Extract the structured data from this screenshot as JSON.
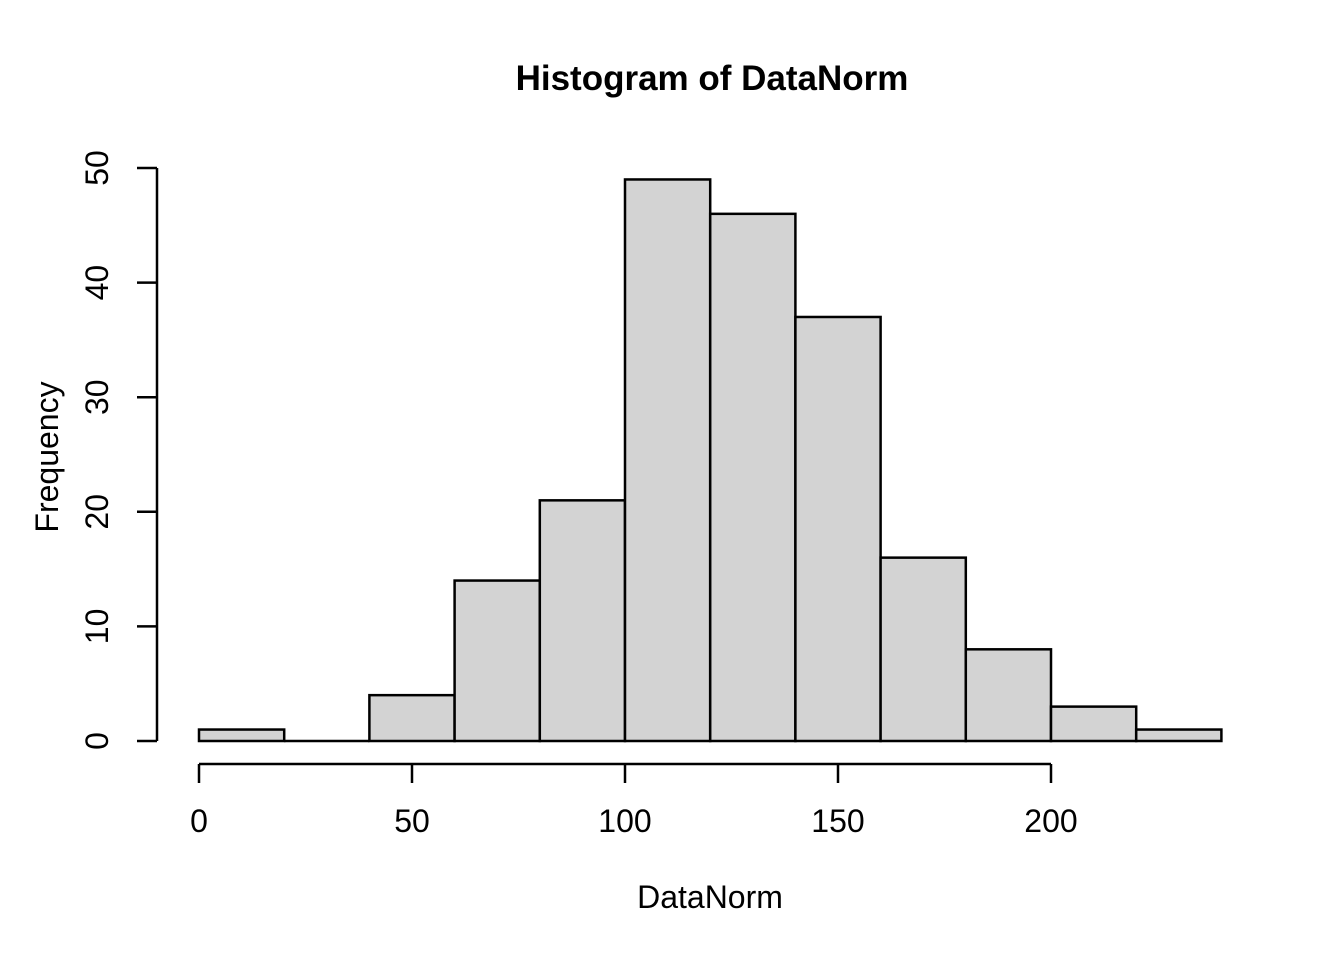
{
  "chart_data": {
    "type": "bar",
    "subtype": "histogram",
    "title": "Histogram of DataNorm",
    "xlabel": "DataNorm",
    "ylabel": "Frequency",
    "breaks": [
      0,
      20,
      40,
      60,
      80,
      100,
      120,
      140,
      160,
      180,
      200,
      220,
      240
    ],
    "counts": [
      1,
      0,
      4,
      14,
      21,
      49,
      46,
      37,
      16,
      8,
      3,
      1
    ],
    "x_ticks": [
      0,
      50,
      100,
      150,
      200
    ],
    "y_ticks": [
      0,
      10,
      20,
      30,
      40,
      50
    ],
    "xlim": [
      0,
      240
    ],
    "ylim": [
      0,
      50
    ],
    "grid": false,
    "legend": "none",
    "colors": {
      "bar_fill": "#d3d3d3",
      "bar_stroke": "#000000",
      "axis": "#000000",
      "text": "#000000",
      "background": "#ffffff"
    }
  }
}
